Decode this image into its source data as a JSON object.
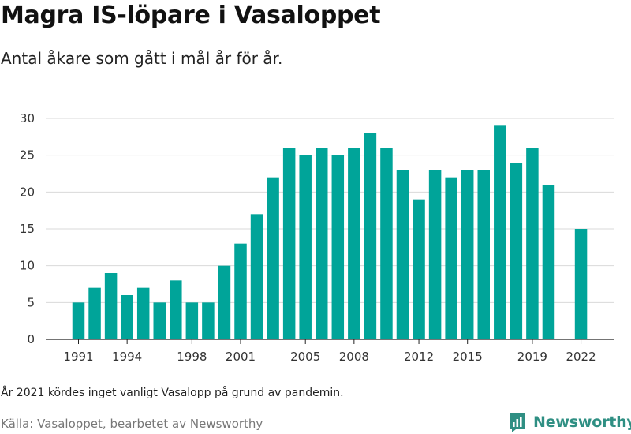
{
  "chart_data": {
    "type": "bar",
    "title": "Magra IS-löpare i Vasaloppet",
    "subtitle": "Antal åkare som gått i mål år för år.",
    "x": [
      1991,
      1992,
      1993,
      1994,
      1995,
      1996,
      1997,
      1998,
      1999,
      2000,
      2001,
      2002,
      2003,
      2004,
      2005,
      2006,
      2007,
      2008,
      2009,
      2010,
      2011,
      2012,
      2013,
      2014,
      2015,
      2016,
      2017,
      2018,
      2019,
      2020,
      2021,
      2022
    ],
    "values": [
      5,
      7,
      9,
      6,
      7,
      5,
      8,
      5,
      5,
      10,
      13,
      17,
      22,
      26,
      25,
      26,
      25,
      26,
      28,
      26,
      23,
      19,
      23,
      22,
      23,
      23,
      29,
      24,
      26,
      21,
      null,
      15
    ],
    "x_tick_labels": [
      "1991",
      "1994",
      "1998",
      "2001",
      "2005",
      "2008",
      "2012",
      "2015",
      "2019",
      "2022"
    ],
    "x_tick_values": [
      1991,
      1994,
      1998,
      2001,
      2005,
      2008,
      2012,
      2015,
      2019,
      2022
    ],
    "y_ticks": [
      0,
      5,
      10,
      15,
      20,
      25,
      30
    ],
    "ylim": [
      0,
      30
    ],
    "grid": true,
    "bar_color": "#00a499",
    "note": "År 2021 kördes inget vanligt Vasalopp på grund av pandemin.",
    "source": "Källa: Vasaloppet, bearbetet av Newsworthy"
  },
  "brand": {
    "name": "Newsworthy",
    "icon": "bar-chart-logo-icon",
    "color": "#2f8f83"
  }
}
